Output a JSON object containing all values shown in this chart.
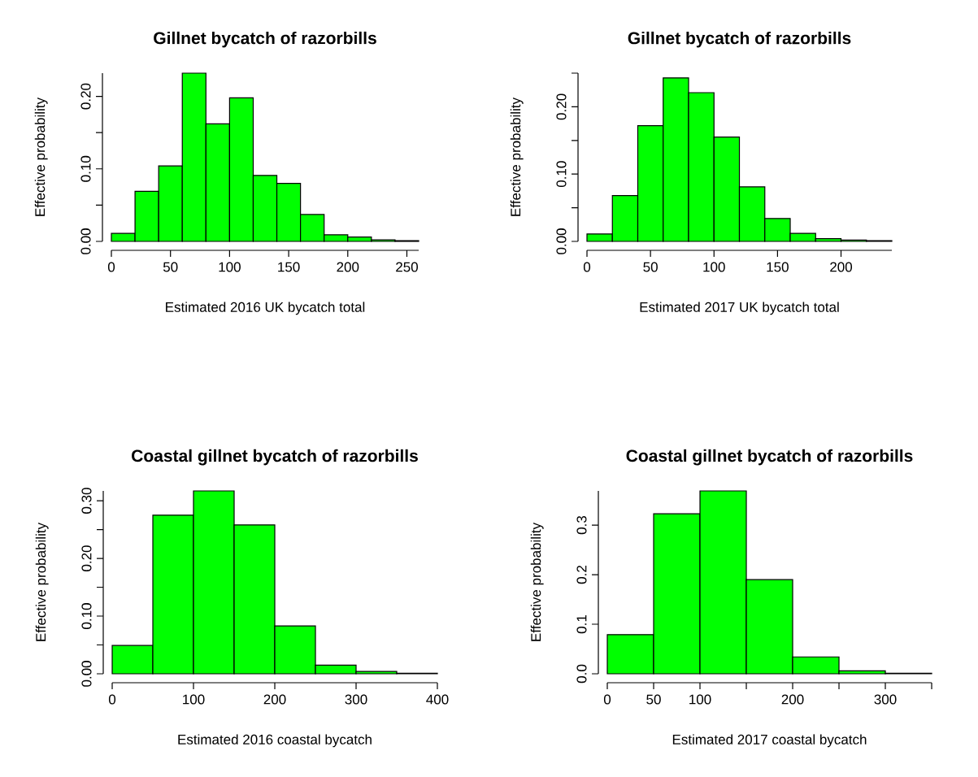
{
  "chart_data": [
    {
      "type": "histogram",
      "title": "Gillnet bycatch of razorbills",
      "xlabel": "Estimated 2016 UK bycatch total",
      "ylabel": "Effective probability",
      "color": "#00ff00",
      "bins": [
        0,
        20,
        40,
        60,
        80,
        100,
        120,
        140,
        160,
        180,
        200,
        220,
        240,
        260
      ],
      "values": [
        0.011,
        0.069,
        0.104,
        0.232,
        0.162,
        0.198,
        0.091,
        0.08,
        0.037,
        0.009,
        0.006,
        0.002,
        0.001
      ],
      "xlim": [
        0,
        260
      ],
      "ylim": [
        0,
        0.232
      ],
      "xticks": [
        0,
        50,
        100,
        150,
        200,
        250
      ],
      "yticks": [
        {
          "value": 0,
          "label": "0.00"
        },
        {
          "value": 0.05,
          "label": null
        },
        {
          "value": 0.1,
          "label": "0.10"
        },
        {
          "value": 0.15,
          "label": null
        },
        {
          "value": 0.2,
          "label": "0.20"
        }
      ]
    },
    {
      "type": "histogram",
      "title": "Gillnet bycatch of razorbills",
      "xlabel": "Estimated 2017 UK bycatch total",
      "ylabel": "Effective probability",
      "color": "#00ff00",
      "bins": [
        0,
        20,
        40,
        60,
        80,
        100,
        120,
        140,
        160,
        180,
        200,
        220,
        240
      ],
      "values": [
        0.011,
        0.068,
        0.172,
        0.243,
        0.221,
        0.155,
        0.081,
        0.034,
        0.012,
        0.004,
        0.002,
        0.001
      ],
      "xlim": [
        0,
        240
      ],
      "ylim": [
        0,
        0.25
      ],
      "xticks": [
        0,
        50,
        100,
        150,
        200
      ],
      "yticks": [
        {
          "value": 0,
          "label": "0.00"
        },
        {
          "value": 0.05,
          "label": null
        },
        {
          "value": 0.1,
          "label": "0.10"
        },
        {
          "value": 0.15,
          "label": null
        },
        {
          "value": 0.2,
          "label": "0.20"
        },
        {
          "value": 0.25,
          "label": null
        }
      ]
    },
    {
      "type": "histogram",
      "title": "Coastal gillnet bycatch of  razorbills",
      "xlabel": "Estimated 2016 coastal bycatch",
      "ylabel": "Effective probability",
      "color": "#00ff00",
      "bins": [
        0,
        50,
        100,
        150,
        200,
        250,
        300,
        350,
        400
      ],
      "values": [
        0.049,
        0.275,
        0.317,
        0.258,
        0.083,
        0.015,
        0.004,
        0.001
      ],
      "xlim": [
        0,
        400
      ],
      "ylim": [
        0,
        0.317
      ],
      "xticks": [
        0,
        100,
        200,
        300,
        400
      ],
      "yticks": [
        {
          "value": 0,
          "label": "0.00"
        },
        {
          "value": 0.05,
          "label": null
        },
        {
          "value": 0.1,
          "label": "0.10"
        },
        {
          "value": 0.15,
          "label": null
        },
        {
          "value": 0.2,
          "label": "0.20"
        },
        {
          "value": 0.25,
          "label": null
        },
        {
          "value": 0.3,
          "label": "0.30"
        }
      ]
    },
    {
      "type": "histogram",
      "title": "Coastal gillnet bycatch of  razorbills",
      "xlabel": "Estimated 2017 coastal bycatch",
      "ylabel": "Effective probability",
      "color": "#00ff00",
      "bins": [
        0,
        50,
        100,
        150,
        200,
        250,
        300,
        350
      ],
      "values": [
        0.079,
        0.323,
        0.369,
        0.19,
        0.034,
        0.006,
        0.001
      ],
      "xlim": [
        0,
        350
      ],
      "ylim": [
        0,
        0.369
      ],
      "xticks": [
        0,
        50,
        100,
        {
          "value": 150,
          "label": null
        },
        200,
        {
          "value": 250,
          "label": null
        },
        300,
        {
          "value": 350,
          "label": null
        }
      ],
      "yticks": [
        {
          "value": 0,
          "label": "0.0"
        },
        {
          "value": 0.1,
          "label": "0.1"
        },
        {
          "value": 0.2,
          "label": "0.2"
        },
        {
          "value": 0.3,
          "label": "0.3"
        }
      ]
    }
  ]
}
